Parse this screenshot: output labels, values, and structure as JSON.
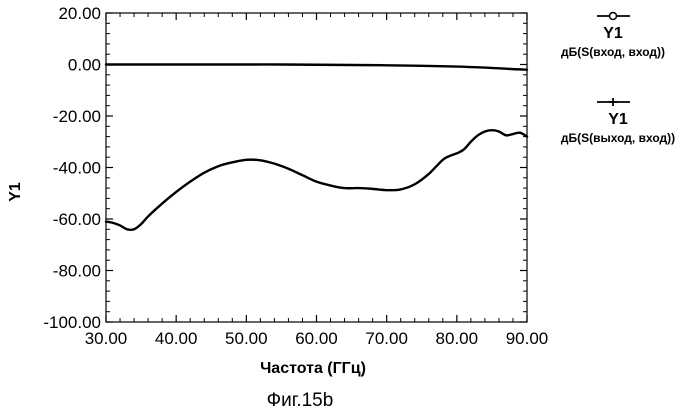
{
  "chart_data": {
    "type": "line",
    "title": "",
    "caption": "Фиг.15b",
    "xlabel": "Частота (ГГц)",
    "ylabel": "Y1",
    "xlim": [
      30,
      90
    ],
    "ylim": [
      -100,
      20
    ],
    "grid": false,
    "x_ticks": [
      "30.00",
      "40.00",
      "50.00",
      "60.00",
      "70.00",
      "80.00",
      "90.00"
    ],
    "x_tick_values": [
      30,
      40,
      50,
      60,
      70,
      80,
      90
    ],
    "y_ticks": [
      "20.00",
      "0.00",
      "-20.00",
      "-40.00",
      "-60.00",
      "-80.00",
      "-100.00"
    ],
    "y_tick_values": [
      20,
      0,
      -20,
      -40,
      -60,
      -80,
      -100
    ],
    "legend_position": "right",
    "series": [
      {
        "name": "Y1",
        "label": "дБ(S(вход, вход))",
        "marker": "circle",
        "x": [
          30,
          35,
          40,
          45,
          50,
          55,
          60,
          65,
          70,
          75,
          80,
          82,
          84,
          86,
          88,
          90
        ],
        "y": [
          0,
          0,
          0,
          0,
          0,
          0,
          -0.1,
          -0.2,
          -0.3,
          -0.5,
          -0.8,
          -1.0,
          -1.2,
          -1.5,
          -1.8,
          -2.0
        ]
      },
      {
        "name": "Y1",
        "label": "дБ(S(выход, вход))",
        "marker": "plus",
        "x": [
          30,
          31,
          32,
          33,
          34,
          35,
          36,
          38,
          40,
          42,
          44,
          46,
          48,
          50,
          52,
          54,
          56,
          58,
          60,
          62,
          64,
          66,
          68,
          70,
          72,
          74,
          76,
          78,
          79,
          80,
          81,
          82,
          83,
          84,
          85,
          86,
          87,
          88,
          89,
          90
        ],
        "y": [
          -61,
          -61.5,
          -62.5,
          -64,
          -64,
          -62,
          -59,
          -54,
          -49.5,
          -45.5,
          -42,
          -39.5,
          -38,
          -37,
          -37.2,
          -38.5,
          -40.5,
          -43,
          -45.5,
          -47,
          -48,
          -48,
          -48.3,
          -48.8,
          -48.5,
          -46.5,
          -42.5,
          -37,
          -35.5,
          -34.5,
          -33,
          -30,
          -27.5,
          -26,
          -25.5,
          -26,
          -27.5,
          -27,
          -26.5,
          -28
        ]
      }
    ]
  },
  "colors": {
    "line": "#000000",
    "background": "#ffffff"
  }
}
